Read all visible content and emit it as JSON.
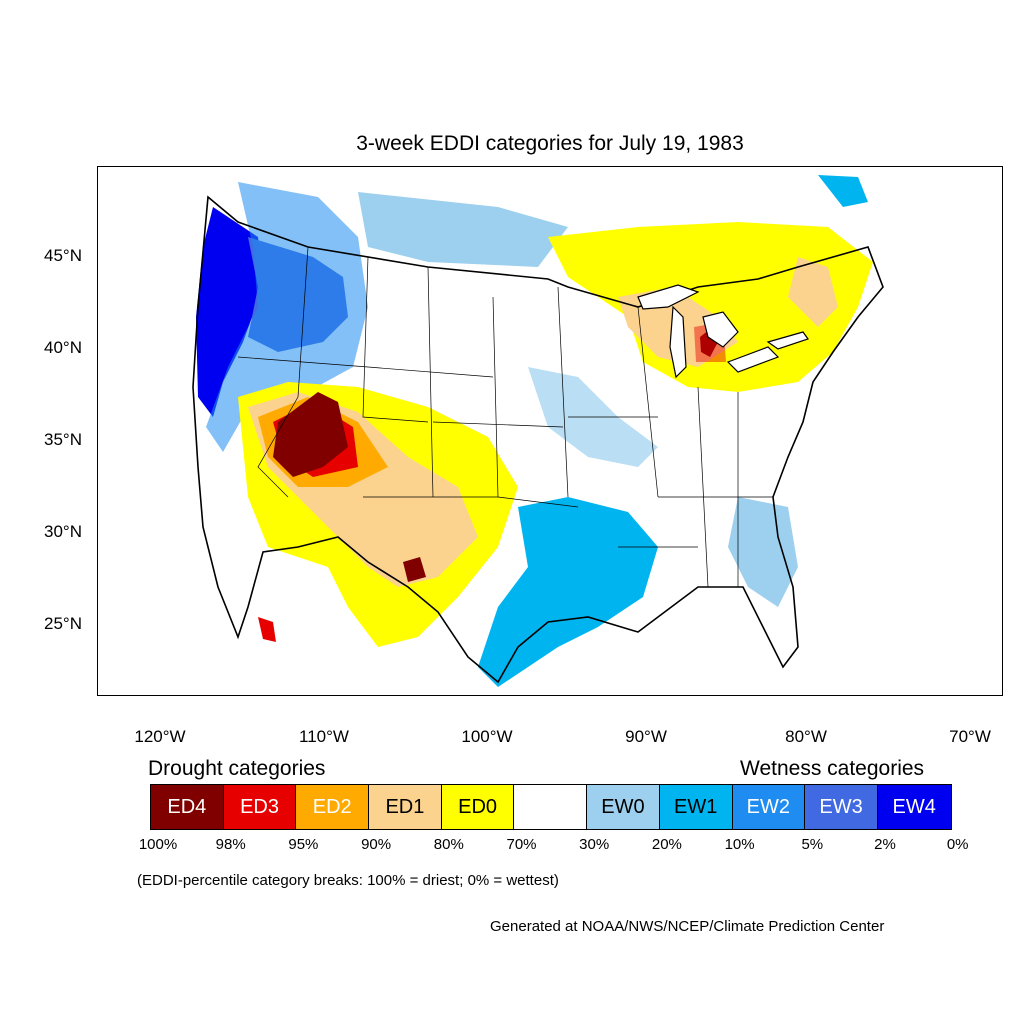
{
  "title": "3-week EDDI categories for July 19, 1983",
  "map": {
    "projection": "lambert-conformal-conus",
    "lat_labels": [
      "45°N",
      "40°N",
      "35°N",
      "30°N",
      "25°N"
    ],
    "lon_labels": [
      "120°W",
      "110°W",
      "100°W",
      "90°W",
      "80°W",
      "70°W"
    ],
    "regions": [
      {
        "name": "ED4",
        "area": "Southern Nevada / southwest Utah / northwest Arizona"
      },
      {
        "name": "ED4",
        "area": "Southeast New Mexico"
      },
      {
        "name": "ED4",
        "area": "Central Lower Michigan"
      },
      {
        "name": "EW4",
        "area": "Pacific Northwest coast / northern California"
      },
      {
        "name": "EW3",
        "area": "Eastern Washington / Oregon / Idaho"
      },
      {
        "name": "EW1",
        "area": "Lower Mississippi Valley / east Texas"
      }
    ]
  },
  "legend": {
    "drought_heading": "Drought categories",
    "wetness_heading": "Wetness categories",
    "categories": [
      {
        "label": "ED4",
        "color": "#800000",
        "text_color": "#ffffff"
      },
      {
        "label": "ED3",
        "color": "#e60000",
        "text_color": "#ffffff"
      },
      {
        "label": "ED2",
        "color": "#ffaa00",
        "text_color": "#ffffff"
      },
      {
        "label": "ED1",
        "color": "#fcd38e",
        "text_color": "#000000"
      },
      {
        "label": "ED0",
        "color": "#ffff00",
        "text_color": "#000000"
      },
      {
        "label": "",
        "color": "#ffffff",
        "text_color": "#000000"
      },
      {
        "label": "EW0",
        "color": "#9dd0ef",
        "text_color": "#000000"
      },
      {
        "label": "EW1",
        "color": "#00b4f0",
        "text_color": "#000000"
      },
      {
        "label": "EW2",
        "color": "#1e8cf0",
        "text_color": "#ffffff"
      },
      {
        "label": "EW3",
        "color": "#4169e1",
        "text_color": "#ffffff"
      },
      {
        "label": "EW4",
        "color": "#0000f0",
        "text_color": "#ffffff"
      }
    ],
    "breaks": [
      "100%",
      "98%",
      "95%",
      "90%",
      "80%",
      "70%",
      "30%",
      "20%",
      "10%",
      "5%",
      "2%",
      "0%"
    ]
  },
  "note": "(EDDI-percentile category breaks: 100% = driest; 0% = wettest)",
  "credit": "Generated at NOAA/NWS/NCEP/Climate Prediction Center"
}
